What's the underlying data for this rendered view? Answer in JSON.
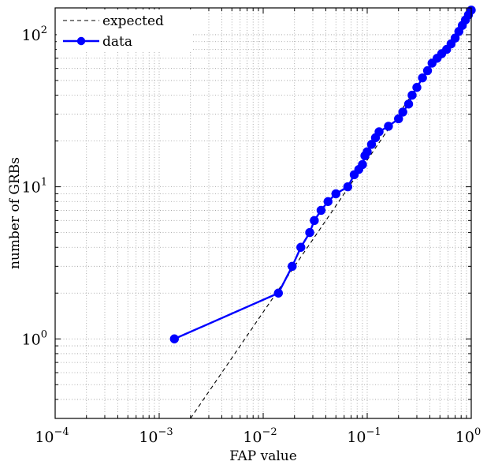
{
  "chart_data": {
    "type": "line",
    "title": "",
    "xlabel": "FAP value",
    "ylabel": "number of GRBs",
    "xscale": "log",
    "yscale": "log",
    "xlim": [
      0.0001,
      1
    ],
    "ylim": [
      0.3,
      150
    ],
    "grid": true,
    "legend_position": "top-left",
    "x_ticks": [
      {
        "value": 0.0001,
        "base": "10",
        "exp": "−4"
      },
      {
        "value": 0.001,
        "base": "10",
        "exp": "−3"
      },
      {
        "value": 0.01,
        "base": "10",
        "exp": "−2"
      },
      {
        "value": 0.1,
        "base": "10",
        "exp": "−1"
      },
      {
        "value": 1,
        "base": "10",
        "exp": "0"
      }
    ],
    "y_ticks": [
      {
        "value": 1,
        "base": "10",
        "exp": "0"
      },
      {
        "value": 10,
        "base": "10",
        "exp": "1"
      },
      {
        "value": 100,
        "base": "10",
        "exp": "2"
      }
    ],
    "series": [
      {
        "name": "expected",
        "color": "#000000",
        "style": "dashed",
        "x": [
          0.002,
          1.0
        ],
        "y": [
          0.3,
          150
        ]
      },
      {
        "name": "data",
        "color": "#0000ff",
        "style": "solid-with-markers",
        "x": [
          0.0014,
          0.014,
          0.019,
          0.023,
          0.028,
          0.031,
          0.036,
          0.042,
          0.05,
          0.065,
          0.075,
          0.083,
          0.09,
          0.095,
          0.1,
          0.11,
          0.12,
          0.13,
          0.16,
          0.2,
          0.22,
          0.25,
          0.27,
          0.3,
          0.34,
          0.38,
          0.42,
          0.47,
          0.52,
          0.58,
          0.64,
          0.7,
          0.76,
          0.82,
          0.88,
          0.94,
          1.0
        ],
        "y": [
          1,
          2,
          3,
          4,
          5,
          6,
          7,
          8,
          9,
          10,
          12,
          13,
          14,
          16,
          17,
          19,
          21,
          23,
          25,
          28,
          31,
          35,
          40,
          45,
          52,
          58,
          65,
          70,
          75,
          80,
          87,
          95,
          105,
          115,
          125,
          135,
          145
        ]
      }
    ]
  }
}
